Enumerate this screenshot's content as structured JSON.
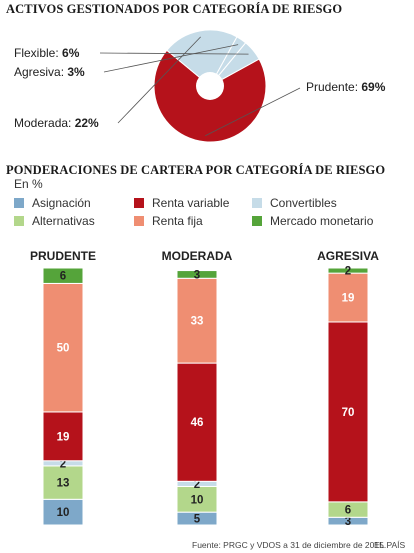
{
  "titles": {
    "pie_title": "ACTIVOS GESTIONADOS POR CATEGORÍA DE RIESGO",
    "bars_title": "PONDERACIONES DE CARTERA POR CATEGORÍA DE RIESGO",
    "unit": "En %"
  },
  "colors": {
    "Asignación": "#7ea8c9",
    "Renta variable": "#b5121b",
    "Convertibles": "#c6dce8",
    "Alternativas": "#b3d78b",
    "Renta fija": "#ef8e72",
    "Mercado monetario": "#55a43a"
  },
  "legend": [
    {
      "label": "Asignación",
      "color": "#7ea8c9"
    },
    {
      "label": "Renta variable",
      "color": "#b5121b"
    },
    {
      "label": "Convertibles",
      "color": "#c6dce8"
    },
    {
      "label": "Alternativas",
      "color": "#b3d78b"
    },
    {
      "label": "Renta fija",
      "color": "#ef8e72"
    },
    {
      "label": "Mercado monetario",
      "color": "#55a43a"
    }
  ],
  "chart_data": [
    {
      "type": "pie",
      "title": "ACTIVOS GESTIONADOS POR CATEGORÍA DE RIESGO",
      "slices": [
        {
          "label": "Prudente",
          "value": 69,
          "color": "#b5121b"
        },
        {
          "label": "Moderada",
          "value": 22,
          "color": "#c6dce8"
        },
        {
          "label": "Agresiva",
          "value": 3,
          "color": "#c6dce8"
        },
        {
          "label": "Flexible",
          "value": 6,
          "color": "#c6dce8"
        }
      ]
    },
    {
      "type": "bar",
      "stacked": true,
      "title": "PONDERACIONES DE CARTERA POR CATEGORÍA DE RIESGO",
      "unit": "En %",
      "categories": [
        "PRUDENTE",
        "MODERADA",
        "AGRESIVA"
      ],
      "stack_order": [
        "Asignación",
        "Alternativas",
        "Convertibles",
        "Renta variable",
        "Renta fija",
        "Mercado monetario"
      ],
      "series": [
        {
          "name": "Asignación",
          "values": [
            10,
            5,
            3
          ]
        },
        {
          "name": "Alternativas",
          "values": [
            13,
            10,
            6
          ]
        },
        {
          "name": "Convertibles",
          "values": [
            2,
            2,
            0
          ]
        },
        {
          "name": "Renta variable",
          "values": [
            19,
            46,
            70
          ]
        },
        {
          "name": "Renta fija",
          "values": [
            50,
            33,
            19
          ]
        },
        {
          "name": "Mercado monetario",
          "values": [
            6,
            3,
            2
          ]
        }
      ]
    }
  ],
  "footer": {
    "source": "Fuente: PRGC y VDOS a 31 de diciembre de 2015.",
    "brand": "EL PAÍS"
  }
}
